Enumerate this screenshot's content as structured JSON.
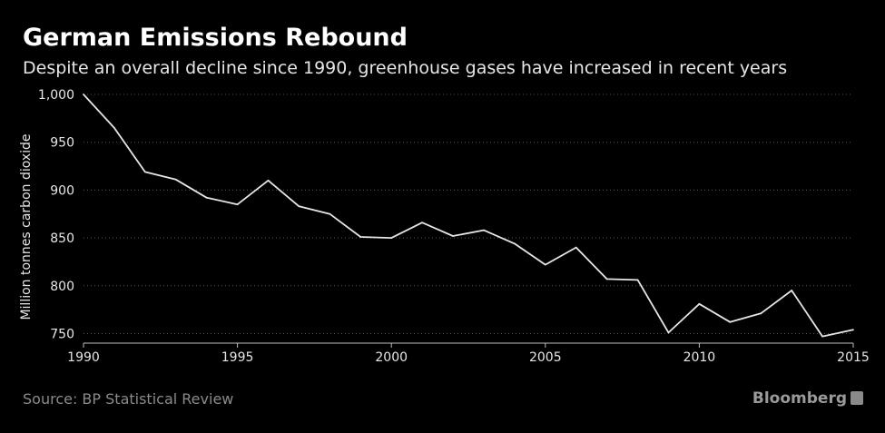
{
  "header": {
    "title": "German Emissions Rebound",
    "subtitle": "Despite an overall decline since 1990, greenhouse gases have increased in recent years"
  },
  "footer": {
    "source": "Source: BP Statistical Review",
    "brand": "Bloomberg",
    "brand_icon": "bloomberg-chart-icon"
  },
  "colors": {
    "background": "#000000",
    "line": "#e6e6e6",
    "grid": "#555555",
    "axis": "#bfbfbf"
  },
  "chart_data": {
    "type": "line",
    "title": "German Emissions Rebound",
    "subtitle": "Despite an overall decline since 1990, greenhouse gases have increased in recent years",
    "xlabel": "",
    "ylabel": "Million tonnes carbon dioxide",
    "xlim": [
      1990,
      2015
    ],
    "ylim": [
      740,
      1000
    ],
    "xticks": [
      1990,
      1995,
      2000,
      2005,
      2010,
      2015
    ],
    "xtick_labels": [
      "1990",
      "1995",
      "2000",
      "2005",
      "2010",
      "2015"
    ],
    "yticks": [
      750,
      800,
      850,
      900,
      950,
      1000
    ],
    "ytick_labels": [
      "750",
      "800",
      "850",
      "900",
      "950",
      "1,000"
    ],
    "grid": true,
    "x": [
      1990,
      1991,
      1992,
      1993,
      1994,
      1995,
      1996,
      1997,
      1998,
      1999,
      2000,
      2001,
      2002,
      2003,
      2004,
      2005,
      2006,
      2007,
      2008,
      2009,
      2010,
      2011,
      2012,
      2013,
      2014,
      2015
    ],
    "series": [
      {
        "values": [
          1000,
          965,
          919,
          911,
          892,
          885,
          910,
          883,
          875,
          851,
          850,
          866,
          852,
          858,
          844,
          822,
          840,
          807,
          806,
          751,
          781,
          762,
          771,
          795,
          747,
          754
        ]
      }
    ]
  }
}
